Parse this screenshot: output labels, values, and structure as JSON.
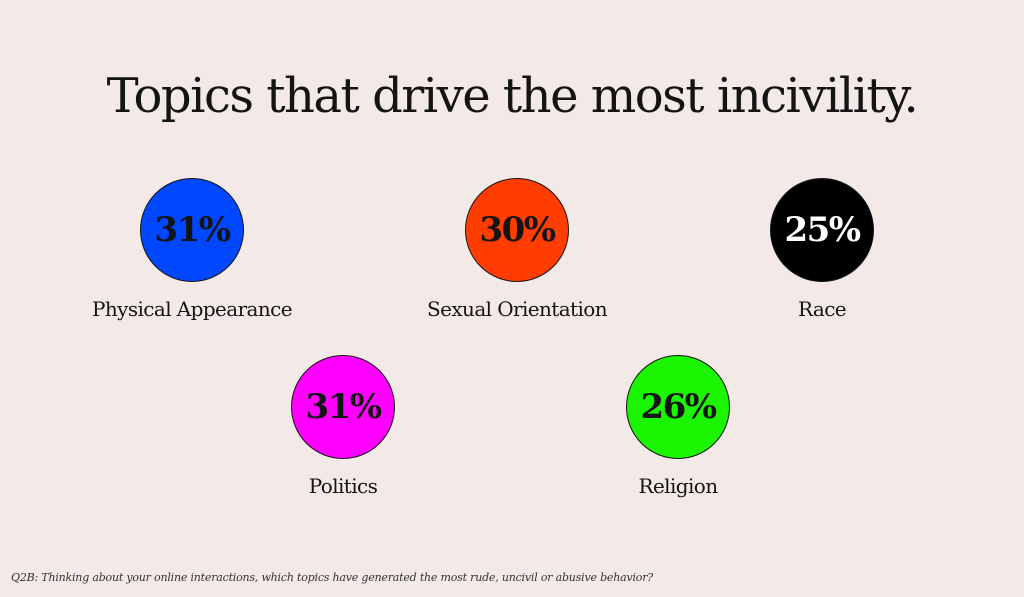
{
  "chart_data": {
    "type": "bubble-stats",
    "title": "Topics that drive the most incivility.",
    "unit": "%",
    "items": [
      {
        "label": "Physical Appearance",
        "value": 31,
        "value_label": "31%",
        "color": "#0047ff",
        "text_color": "#141414"
      },
      {
        "label": "Sexual Orientation",
        "value": 30,
        "value_label": "30%",
        "color": "#ff3d00",
        "text_color": "#141414"
      },
      {
        "label": "Race",
        "value": 25,
        "value_label": "25%",
        "color": "#000000",
        "text_color": "#ffffff"
      },
      {
        "label": "Politics",
        "value": 31,
        "value_label": "31%",
        "color": "#ff00ff",
        "text_color": "#141414"
      },
      {
        "label": "Religion",
        "value": 26,
        "value_label": "26%",
        "color": "#1bf500",
        "text_color": "#141414"
      }
    ],
    "footnote": "Q2B: Thinking about your online interactions, which topics have generated the most rude, uncivil or abusive behavior?"
  }
}
